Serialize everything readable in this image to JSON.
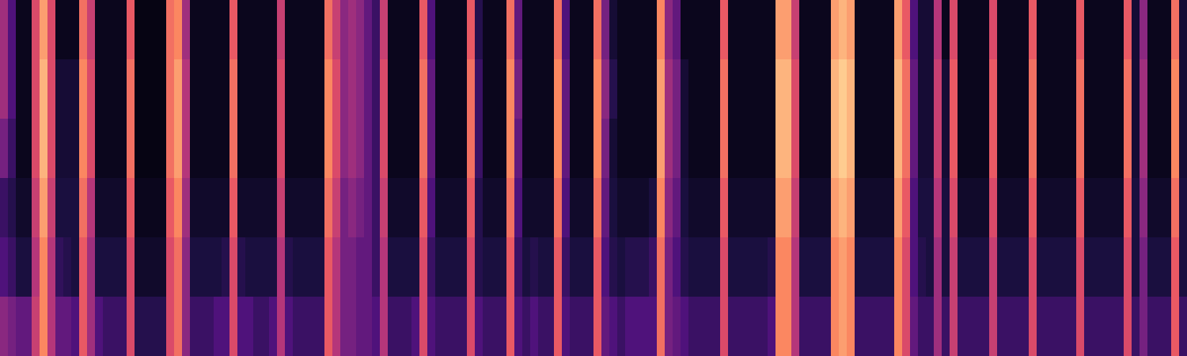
{
  "chart_data": {
    "type": "heatmap",
    "tick_labels": false,
    "zlim": [
      0,
      1
    ],
    "cells": [
      [
        0.45,
        0.25,
        0.05,
        0.05,
        0.6,
        0.8,
        0.6,
        0.05,
        0.05,
        0.05,
        0.7,
        0.55,
        0.05,
        0.05,
        0.05,
        0.05,
        0.65,
        0.03,
        0.03,
        0.03,
        0.03,
        0.7,
        0.75,
        0.45,
        0.05,
        0.05,
        0.05,
        0.05,
        0.05,
        0.65,
        0.05,
        0.05,
        0.05,
        0.05,
        0.05,
        0.55,
        0.05,
        0.05,
        0.05,
        0.05,
        0.05,
        0.7,
        0.55,
        0.4,
        0.45,
        0.4,
        0.3,
        0.2,
        0.55,
        0.05,
        0.05,
        0.05,
        0.05,
        0.65,
        0.25,
        0.05,
        0.05,
        0.05,
        0.05,
        0.65,
        0.15,
        0.05,
        0.05,
        0.05,
        0.7,
        0.3,
        0.05,
        0.05,
        0.05,
        0.05,
        0.7,
        0.25,
        0.05,
        0.05,
        0.05,
        0.7,
        0.35,
        0.1,
        0.05,
        0.05,
        0.05,
        0.05,
        0.05,
        0.75,
        0.4,
        0.3,
        0.05,
        0.05,
        0.05,
        0.05,
        0.05,
        0.65,
        0.05,
        0.05,
        0.05,
        0.05,
        0.05,
        0.05,
        0.8,
        0.8,
        0.55,
        0.05,
        0.05,
        0.05,
        0.05,
        0.8,
        0.85,
        0.8,
        0.05,
        0.05,
        0.05,
        0.05,
        0.05,
        0.8,
        0.65,
        0.25,
        0.1,
        0.1,
        0.5,
        0.05,
        0.6,
        0.05,
        0.05,
        0.05,
        0.05,
        0.6,
        0.05,
        0.05,
        0.05,
        0.05,
        0.65,
        0.05,
        0.05,
        0.05,
        0.05,
        0.05,
        0.65,
        0.05,
        0.05,
        0.05,
        0.05,
        0.05,
        0.65,
        0.1,
        0.4,
        0.05,
        0.05,
        0.05,
        0.7,
        0.1
      ],
      [
        0.45,
        0.25,
        0.05,
        0.05,
        0.6,
        0.85,
        0.6,
        0.1,
        0.1,
        0.1,
        0.75,
        0.6,
        0.05,
        0.05,
        0.05,
        0.05,
        0.7,
        0.03,
        0.03,
        0.03,
        0.03,
        0.7,
        0.8,
        0.5,
        0.05,
        0.05,
        0.05,
        0.05,
        0.05,
        0.7,
        0.05,
        0.05,
        0.05,
        0.05,
        0.05,
        0.6,
        0.05,
        0.05,
        0.05,
        0.05,
        0.05,
        0.75,
        0.6,
        0.4,
        0.45,
        0.4,
        0.3,
        0.2,
        0.6,
        0.05,
        0.05,
        0.05,
        0.05,
        0.7,
        0.3,
        0.05,
        0.05,
        0.05,
        0.05,
        0.7,
        0.2,
        0.05,
        0.05,
        0.05,
        0.75,
        0.35,
        0.05,
        0.05,
        0.05,
        0.05,
        0.75,
        0.3,
        0.05,
        0.05,
        0.05,
        0.75,
        0.4,
        0.15,
        0.05,
        0.05,
        0.05,
        0.05,
        0.05,
        0.8,
        0.45,
        0.35,
        0.1,
        0.05,
        0.05,
        0.05,
        0.05,
        0.7,
        0.05,
        0.05,
        0.05,
        0.05,
        0.05,
        0.05,
        0.85,
        0.85,
        0.6,
        0.05,
        0.05,
        0.05,
        0.05,
        0.85,
        0.9,
        0.85,
        0.05,
        0.05,
        0.05,
        0.05,
        0.05,
        0.85,
        0.7,
        0.3,
        0.1,
        0.1,
        0.55,
        0.1,
        0.65,
        0.05,
        0.05,
        0.05,
        0.05,
        0.65,
        0.05,
        0.05,
        0.05,
        0.05,
        0.7,
        0.05,
        0.05,
        0.05,
        0.05,
        0.05,
        0.7,
        0.05,
        0.05,
        0.05,
        0.05,
        0.05,
        0.7,
        0.1,
        0.45,
        0.05,
        0.05,
        0.05,
        0.75,
        0.1
      ],
      [
        0.35,
        0.2,
        0.05,
        0.05,
        0.6,
        0.85,
        0.6,
        0.1,
        0.1,
        0.1,
        0.75,
        0.6,
        0.05,
        0.05,
        0.05,
        0.05,
        0.7,
        0.03,
        0.03,
        0.03,
        0.03,
        0.7,
        0.8,
        0.5,
        0.05,
        0.05,
        0.05,
        0.05,
        0.05,
        0.7,
        0.05,
        0.05,
        0.05,
        0.05,
        0.05,
        0.6,
        0.05,
        0.05,
        0.05,
        0.05,
        0.05,
        0.75,
        0.6,
        0.4,
        0.45,
        0.4,
        0.3,
        0.2,
        0.6,
        0.05,
        0.05,
        0.05,
        0.05,
        0.7,
        0.3,
        0.05,
        0.05,
        0.05,
        0.05,
        0.7,
        0.2,
        0.05,
        0.05,
        0.05,
        0.75,
        0.3,
        0.05,
        0.05,
        0.05,
        0.05,
        0.75,
        0.3,
        0.05,
        0.05,
        0.05,
        0.75,
        0.35,
        0.1,
        0.05,
        0.05,
        0.05,
        0.05,
        0.05,
        0.8,
        0.45,
        0.35,
        0.1,
        0.05,
        0.05,
        0.05,
        0.05,
        0.7,
        0.05,
        0.05,
        0.05,
        0.05,
        0.05,
        0.05,
        0.85,
        0.85,
        0.6,
        0.05,
        0.05,
        0.05,
        0.05,
        0.85,
        0.9,
        0.85,
        0.05,
        0.05,
        0.05,
        0.05,
        0.05,
        0.85,
        0.7,
        0.3,
        0.1,
        0.1,
        0.55,
        0.1,
        0.65,
        0.05,
        0.05,
        0.05,
        0.05,
        0.65,
        0.05,
        0.05,
        0.05,
        0.05,
        0.7,
        0.05,
        0.05,
        0.05,
        0.05,
        0.05,
        0.7,
        0.05,
        0.05,
        0.05,
        0.05,
        0.05,
        0.7,
        0.1,
        0.45,
        0.05,
        0.05,
        0.05,
        0.75,
        0.1
      ],
      [
        0.2,
        0.15,
        0.08,
        0.08,
        0.55,
        0.8,
        0.55,
        0.12,
        0.12,
        0.12,
        0.7,
        0.5,
        0.08,
        0.08,
        0.08,
        0.08,
        0.65,
        0.05,
        0.05,
        0.05,
        0.05,
        0.65,
        0.75,
        0.45,
        0.08,
        0.08,
        0.08,
        0.08,
        0.08,
        0.65,
        0.08,
        0.08,
        0.08,
        0.08,
        0.08,
        0.55,
        0.08,
        0.08,
        0.08,
        0.08,
        0.08,
        0.7,
        0.55,
        0.35,
        0.4,
        0.35,
        0.3,
        0.2,
        0.55,
        0.08,
        0.08,
        0.08,
        0.08,
        0.65,
        0.25,
        0.08,
        0.08,
        0.08,
        0.08,
        0.65,
        0.15,
        0.08,
        0.08,
        0.08,
        0.7,
        0.25,
        0.08,
        0.08,
        0.08,
        0.08,
        0.7,
        0.25,
        0.08,
        0.08,
        0.08,
        0.7,
        0.3,
        0.12,
        0.08,
        0.08,
        0.08,
        0.08,
        0.12,
        0.75,
        0.4,
        0.3,
        0.12,
        0.08,
        0.08,
        0.08,
        0.08,
        0.65,
        0.08,
        0.08,
        0.08,
        0.08,
        0.08,
        0.08,
        0.8,
        0.8,
        0.55,
        0.08,
        0.08,
        0.08,
        0.08,
        0.8,
        0.85,
        0.8,
        0.08,
        0.08,
        0.08,
        0.08,
        0.08,
        0.8,
        0.65,
        0.25,
        0.12,
        0.12,
        0.5,
        0.12,
        0.6,
        0.08,
        0.08,
        0.08,
        0.08,
        0.6,
        0.08,
        0.08,
        0.08,
        0.08,
        0.65,
        0.08,
        0.08,
        0.08,
        0.08,
        0.08,
        0.65,
        0.08,
        0.08,
        0.08,
        0.08,
        0.08,
        0.65,
        0.12,
        0.4,
        0.08,
        0.08,
        0.08,
        0.7,
        0.12
      ],
      [
        0.25,
        0.2,
        0.12,
        0.12,
        0.5,
        0.75,
        0.5,
        0.18,
        0.15,
        0.12,
        0.65,
        0.45,
        0.12,
        0.12,
        0.12,
        0.12,
        0.6,
        0.08,
        0.08,
        0.08,
        0.08,
        0.6,
        0.7,
        0.4,
        0.12,
        0.12,
        0.12,
        0.12,
        0.15,
        0.6,
        0.15,
        0.12,
        0.12,
        0.12,
        0.12,
        0.5,
        0.15,
        0.12,
        0.12,
        0.12,
        0.12,
        0.65,
        0.5,
        0.35,
        0.35,
        0.3,
        0.3,
        0.2,
        0.5,
        0.12,
        0.12,
        0.12,
        0.12,
        0.6,
        0.2,
        0.12,
        0.12,
        0.12,
        0.12,
        0.6,
        0.15,
        0.12,
        0.12,
        0.12,
        0.65,
        0.2,
        0.12,
        0.15,
        0.12,
        0.12,
        0.65,
        0.2,
        0.12,
        0.12,
        0.12,
        0.65,
        0.25,
        0.15,
        0.12,
        0.15,
        0.15,
        0.15,
        0.2,
        0.7,
        0.35,
        0.25,
        0.15,
        0.12,
        0.12,
        0.12,
        0.12,
        0.6,
        0.12,
        0.12,
        0.12,
        0.12,
        0.12,
        0.15,
        0.75,
        0.75,
        0.5,
        0.12,
        0.12,
        0.12,
        0.12,
        0.75,
        0.8,
        0.75,
        0.12,
        0.12,
        0.12,
        0.12,
        0.12,
        0.75,
        0.6,
        0.25,
        0.15,
        0.12,
        0.45,
        0.12,
        0.55,
        0.12,
        0.12,
        0.12,
        0.12,
        0.55,
        0.12,
        0.12,
        0.12,
        0.12,
        0.6,
        0.12,
        0.12,
        0.12,
        0.12,
        0.12,
        0.6,
        0.12,
        0.12,
        0.12,
        0.12,
        0.12,
        0.6,
        0.12,
        0.35,
        0.12,
        0.12,
        0.12,
        0.65,
        0.12
      ],
      [
        0.4,
        0.35,
        0.3,
        0.3,
        0.55,
        0.75,
        0.5,
        0.3,
        0.3,
        0.25,
        0.65,
        0.45,
        0.25,
        0.2,
        0.2,
        0.2,
        0.6,
        0.15,
        0.15,
        0.15,
        0.15,
        0.6,
        0.7,
        0.4,
        0.2,
        0.2,
        0.2,
        0.25,
        0.25,
        0.6,
        0.25,
        0.25,
        0.2,
        0.2,
        0.25,
        0.5,
        0.25,
        0.2,
        0.2,
        0.2,
        0.2,
        0.65,
        0.5,
        0.35,
        0.35,
        0.3,
        0.3,
        0.25,
        0.5,
        0.2,
        0.2,
        0.2,
        0.25,
        0.6,
        0.25,
        0.2,
        0.2,
        0.2,
        0.2,
        0.6,
        0.25,
        0.2,
        0.2,
        0.2,
        0.65,
        0.25,
        0.2,
        0.25,
        0.2,
        0.2,
        0.65,
        0.25,
        0.2,
        0.2,
        0.2,
        0.65,
        0.3,
        0.25,
        0.2,
        0.25,
        0.25,
        0.25,
        0.25,
        0.7,
        0.35,
        0.3,
        0.25,
        0.2,
        0.2,
        0.2,
        0.2,
        0.6,
        0.2,
        0.2,
        0.2,
        0.2,
        0.2,
        0.25,
        0.75,
        0.75,
        0.5,
        0.2,
        0.2,
        0.2,
        0.2,
        0.75,
        0.8,
        0.75,
        0.2,
        0.2,
        0.2,
        0.2,
        0.2,
        0.75,
        0.6,
        0.3,
        0.2,
        0.2,
        0.45,
        0.2,
        0.55,
        0.2,
        0.2,
        0.2,
        0.2,
        0.55,
        0.2,
        0.2,
        0.2,
        0.2,
        0.6,
        0.2,
        0.2,
        0.2,
        0.2,
        0.2,
        0.6,
        0.2,
        0.2,
        0.2,
        0.2,
        0.2,
        0.6,
        0.2,
        0.35,
        0.2,
        0.2,
        0.2,
        0.65,
        0.2
      ]
    ]
  }
}
